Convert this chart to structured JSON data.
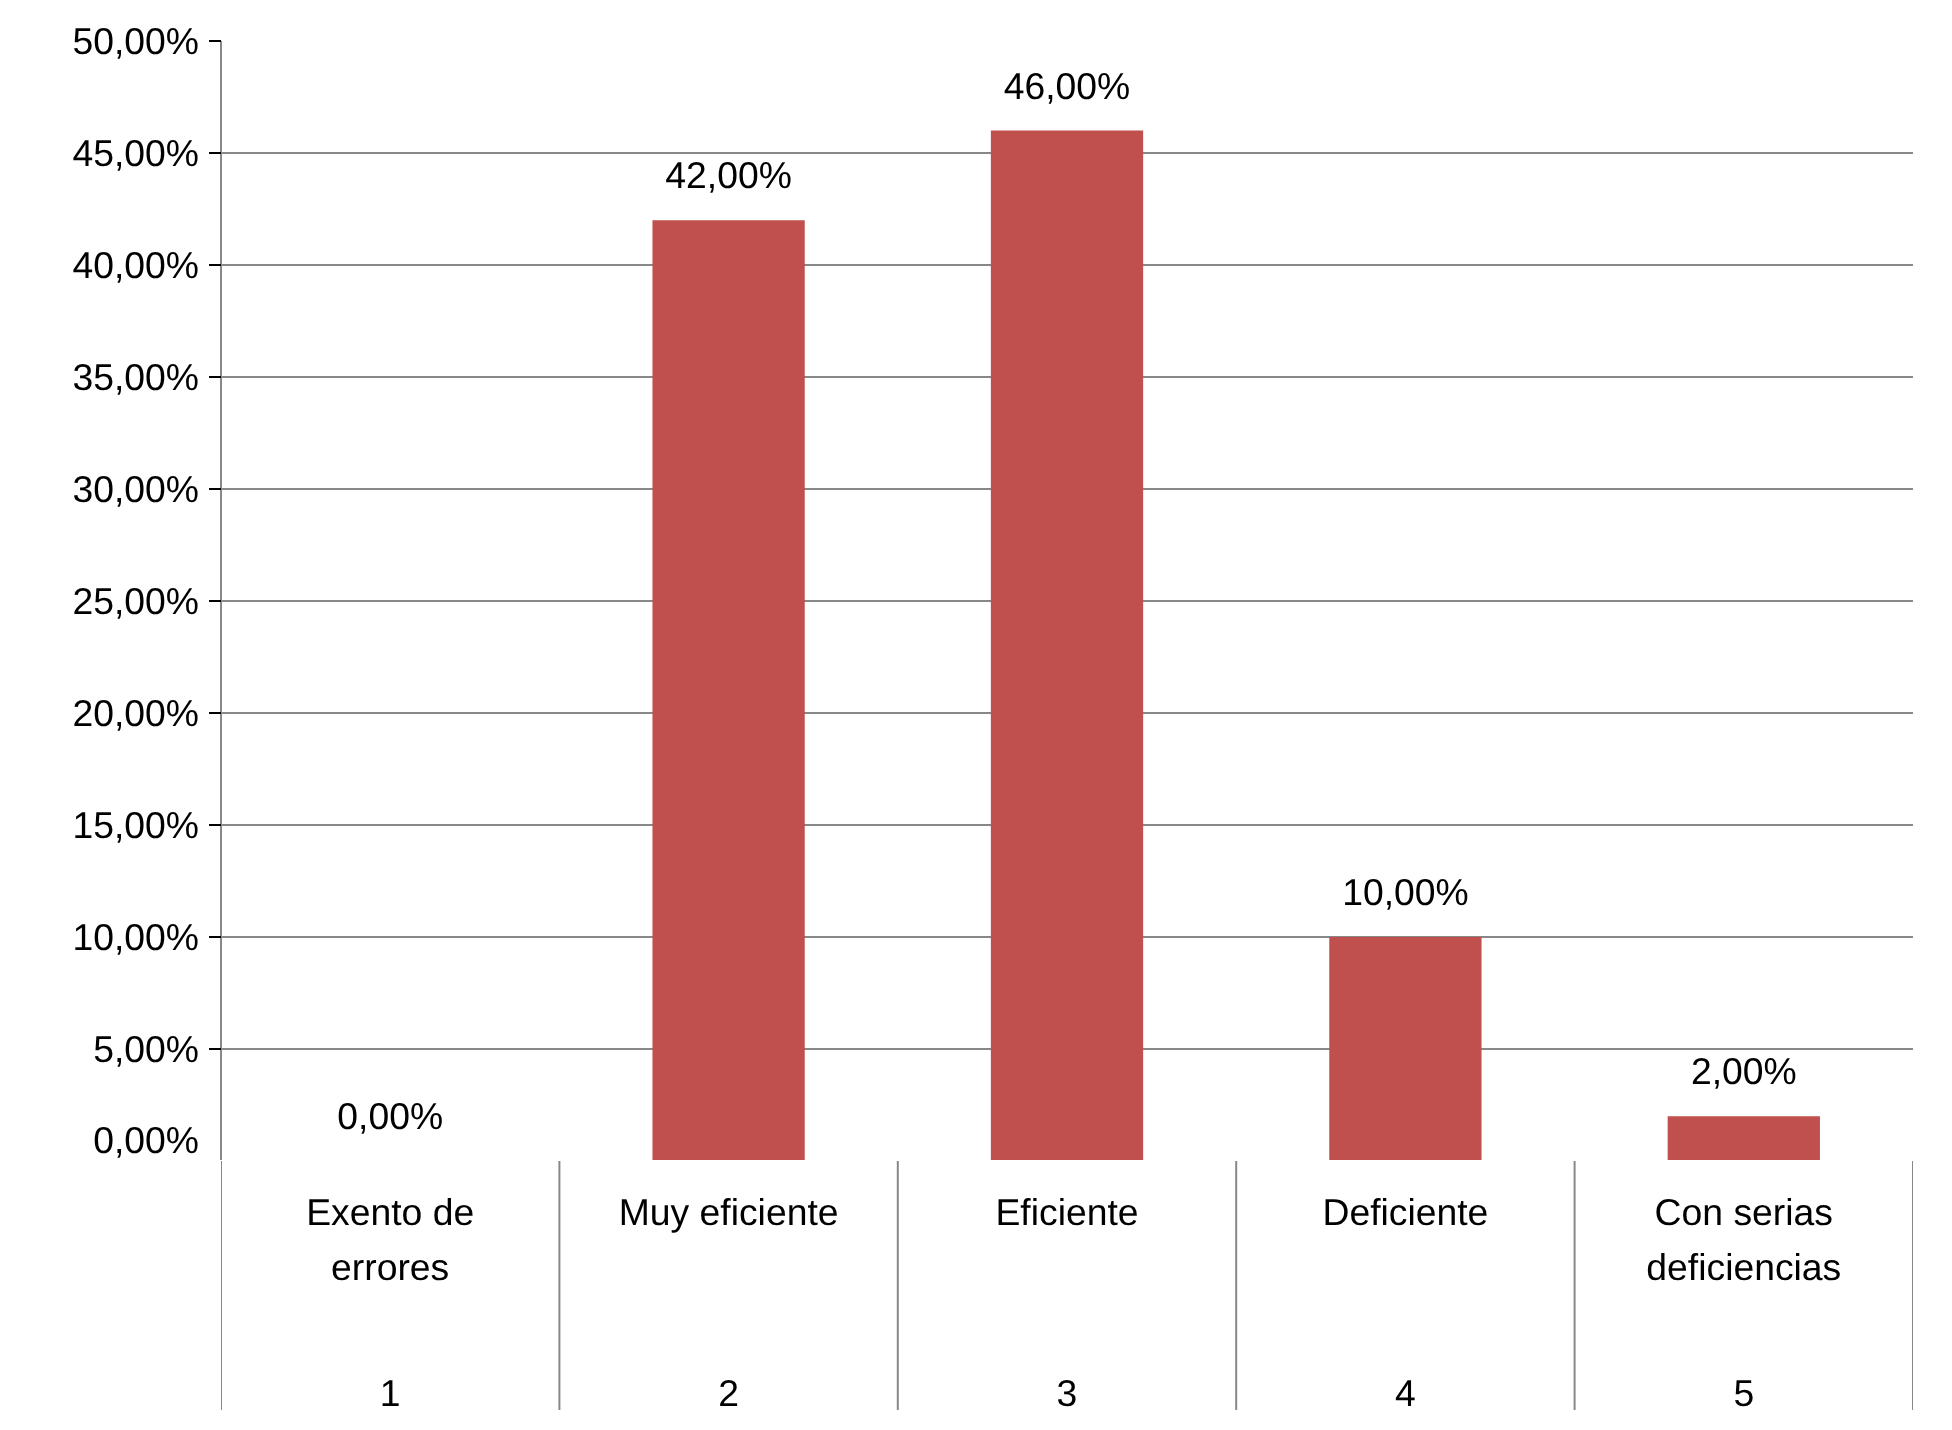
{
  "chart_data": {
    "type": "bar",
    "categories": [
      "Exento de errores",
      "Muy eficiente",
      "Eficiente",
      "Deficiente",
      "Con serias deficiencias"
    ],
    "values": [
      0,
      42,
      46,
      10,
      2
    ],
    "value_labels": [
      "0,00%",
      "42,00%",
      "46,00%",
      "10,00%",
      "2,00%"
    ],
    "color": "#c0504d",
    "ylim": [
      0,
      50
    ],
    "yticks": [
      {
        "value": 0,
        "label": "0,00%"
      },
      {
        "value": 5,
        "label": "5,00%"
      },
      {
        "value": 10,
        "label": "10,00%"
      },
      {
        "value": 15,
        "label": "15,00%"
      },
      {
        "value": 20,
        "label": "20,00%"
      },
      {
        "value": 25,
        "label": "25,00%"
      },
      {
        "value": 30,
        "label": "30,00%"
      },
      {
        "value": 35,
        "label": "35,00%"
      },
      {
        "value": 40,
        "label": "40,00%"
      },
      {
        "value": 45,
        "label": "45,00%"
      },
      {
        "value": 50,
        "label": "50,00%"
      }
    ],
    "grid": "y",
    "annotations": [
      "1",
      "2",
      "3",
      "4",
      "5"
    ]
  }
}
